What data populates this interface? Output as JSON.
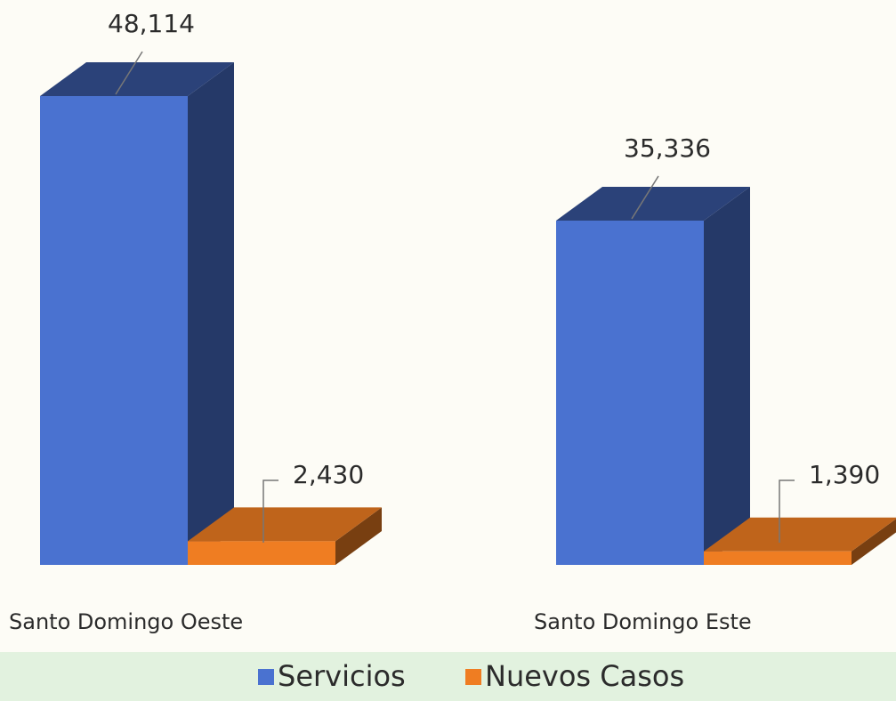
{
  "chart_data": {
    "type": "bar3d",
    "categories": [
      "Santo Domingo Oeste",
      "Santo Domingo Este"
    ],
    "series": [
      {
        "name": "Servicios",
        "color": "#4a72d0",
        "values": [
          48114,
          35336
        ],
        "value_labels": [
          "48,114",
          "35,336"
        ]
      },
      {
        "name": "Nuevos Casos",
        "color": "#ef7d22",
        "values": [
          2430,
          1390
        ],
        "value_labels": [
          "2,430",
          "1,390"
        ]
      }
    ]
  }
}
